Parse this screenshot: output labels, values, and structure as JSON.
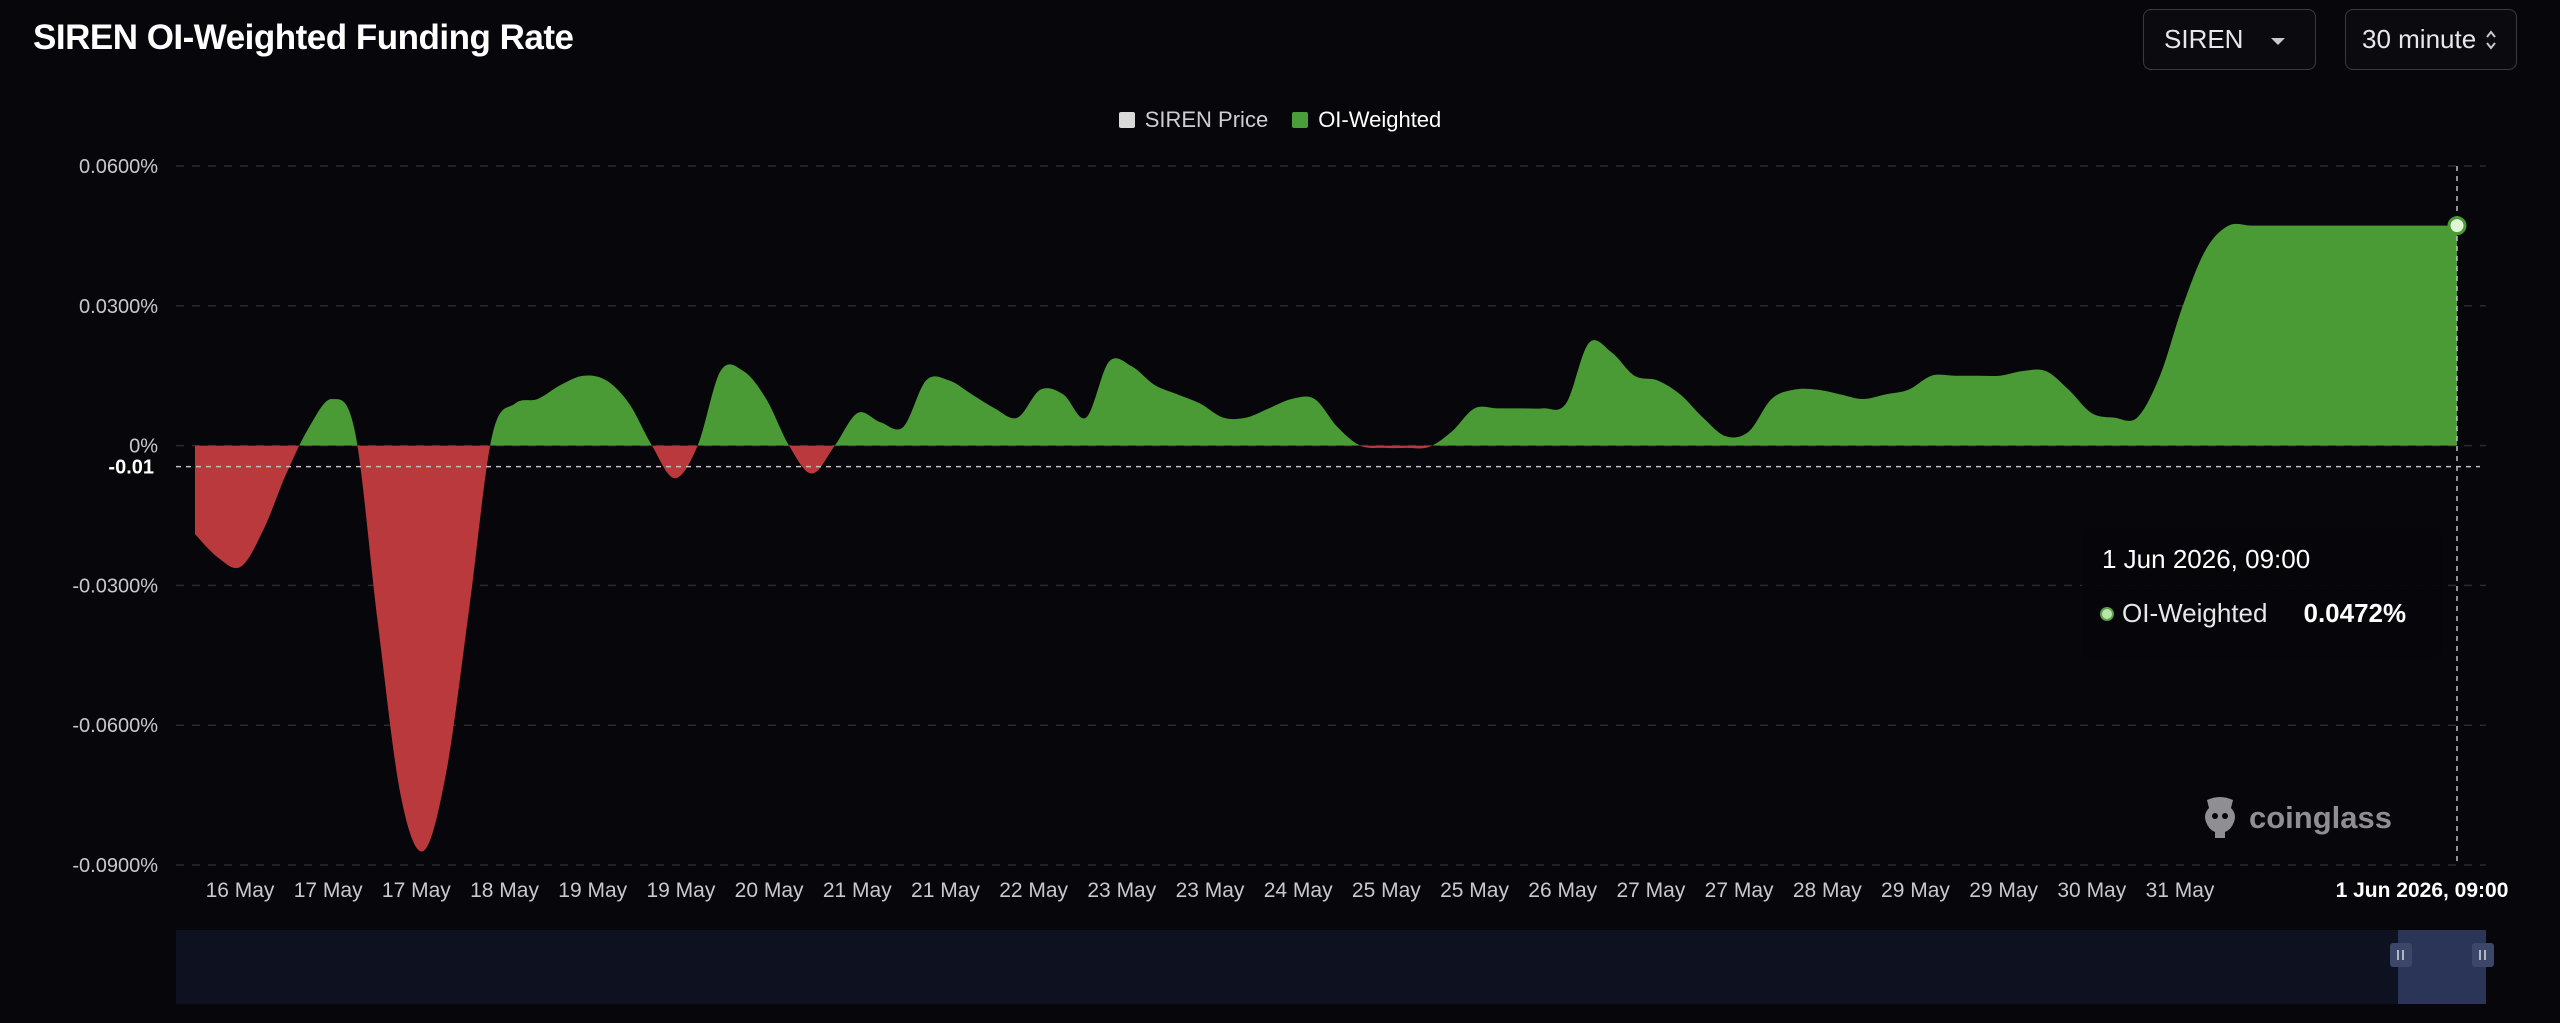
{
  "header": {
    "title": "SIREN OI-Weighted Funding Rate",
    "coin_select": "SIREN",
    "interval_select": "30 minute"
  },
  "legend": [
    {
      "label": "SIREN Price",
      "color": "#d9d9d9"
    },
    {
      "label": "OI-Weighted",
      "color": "#4a9e3a"
    }
  ],
  "colors": {
    "positive": "#4a9a35",
    "negative": "#b9393c",
    "background": "#07070b",
    "slider_line": "#3e5ea8"
  },
  "tooltip": {
    "title": "1 Jun 2026, 09:00",
    "series": "OI-Weighted",
    "value": "0.0472%"
  },
  "crosshair": {
    "y_label": "-0.01",
    "x_label": "1 Jun 2026, 09:00"
  },
  "brand": {
    "name": "coinglass",
    "icon": "coinglass-logo-icon"
  },
  "chart_data": {
    "type": "area",
    "title": "SIREN OI-Weighted Funding Rate",
    "y_unit": "%",
    "ylim": [
      -0.09,
      0.06
    ],
    "y_ticks": [
      {
        "value": 0.06,
        "label": "0.0600%"
      },
      {
        "value": 0.03,
        "label": "0.0300%"
      },
      {
        "value": 0,
        "label": "0%"
      },
      {
        "value": -0.03,
        "label": "-0.0300%"
      },
      {
        "value": -0.06,
        "label": "-0.0600%"
      },
      {
        "value": -0.09,
        "label": "-0.0900%"
      }
    ],
    "x_tick_labels": [
      "16 May",
      "17 May",
      "17 May",
      "18 May",
      "19 May",
      "19 May",
      "20 May",
      "21 May",
      "21 May",
      "22 May",
      "23 May",
      "23 May",
      "24 May",
      "25 May",
      "25 May",
      "26 May",
      "27 May",
      "27 May",
      "28 May",
      "29 May",
      "29 May",
      "30 May",
      "31 May"
    ],
    "x_last_label": "1 Jun 2026, 09:00",
    "grid": true,
    "legend_position": "top-center",
    "series": [
      {
        "name": "OI-Weighted",
        "x": [
          0,
          1,
          2,
          3,
          4,
          5,
          6,
          7,
          8,
          9,
          10,
          11,
          12,
          13,
          14,
          15,
          16,
          17,
          18,
          19,
          20,
          21,
          22,
          23,
          24,
          25,
          26,
          27,
          28,
          29,
          30,
          31,
          32,
          33,
          34,
          35,
          36,
          37,
          38,
          39,
          40,
          41,
          42,
          43,
          44,
          45,
          46,
          47,
          48,
          49,
          50,
          51,
          52,
          53,
          54,
          55,
          56,
          57,
          58,
          59,
          60,
          61,
          62,
          63,
          64,
          65,
          66,
          67,
          68,
          69,
          70,
          71,
          72,
          73,
          74,
          75,
          76,
          77,
          78,
          79,
          80,
          81,
          82,
          83,
          84,
          85,
          86,
          87,
          88,
          89,
          90,
          91,
          92,
          93,
          94,
          95,
          96,
          97,
          98,
          99
        ],
        "values": [
          -0.019,
          -0.024,
          -0.026,
          -0.018,
          -0.006,
          0.004,
          0.01,
          0.003,
          -0.038,
          -0.075,
          -0.087,
          -0.07,
          -0.035,
          0.002,
          0.009,
          0.01,
          0.013,
          0.015,
          0.014,
          0.009,
          0.0,
          -0.007,
          0.0,
          0.016,
          0.016,
          0.01,
          0.0,
          -0.006,
          0.0,
          0.007,
          0.005,
          0.004,
          0.014,
          0.014,
          0.011,
          0.008,
          0.006,
          0.012,
          0.011,
          0.006,
          0.018,
          0.017,
          0.013,
          0.011,
          0.009,
          0.006,
          0.006,
          0.008,
          0.01,
          0.01,
          0.004,
          0.0,
          -0.0005,
          -0.0005,
          -0.0003,
          0.003,
          0.008,
          0.008,
          0.008,
          0.008,
          0.009,
          0.022,
          0.02,
          0.015,
          0.014,
          0.011,
          0.006,
          0.002,
          0.003,
          0.01,
          0.012,
          0.012,
          0.011,
          0.01,
          0.011,
          0.012,
          0.015,
          0.015,
          0.015,
          0.015,
          0.016,
          0.016,
          0.012,
          0.007,
          0.006,
          0.006,
          0.015,
          0.03,
          0.042,
          0.0472,
          0.0472,
          0.0472,
          0.0472,
          0.0472,
          0.0472,
          0.0472,
          0.0472,
          0.0472,
          0.0472,
          0.0472
        ]
      }
    ]
  }
}
